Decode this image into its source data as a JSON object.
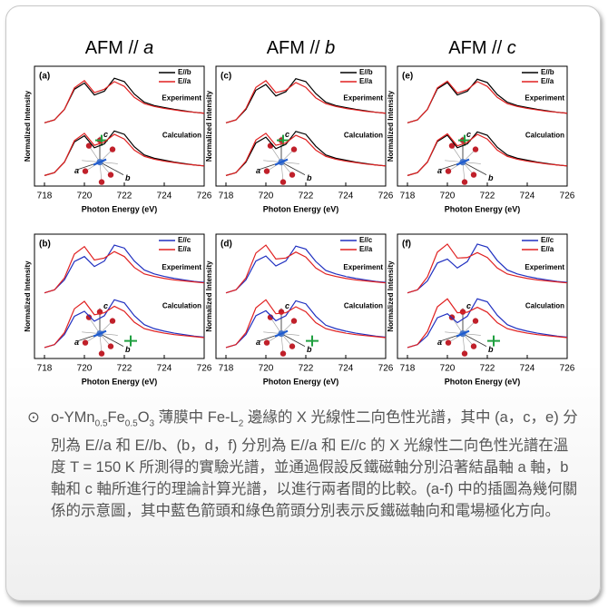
{
  "headers": [
    {
      "text": "AFM //",
      "axis": "a"
    },
    {
      "text": "AFM //",
      "axis": "b"
    },
    {
      "text": "AFM //",
      "axis": "c"
    }
  ],
  "caption": {
    "bullet": "⊙",
    "parts": [
      "o-YMn",
      "0.5",
      "Fe",
      "0.5",
      "O",
      "3",
      " 薄膜中 Fe-L",
      "2",
      " 邊緣的 X 光線性二向色性光譜，其中 (a，c，e) 分別為 E//a 和 E//b、(b，d，f) 分別為 E//a 和 E//c 的 X 光線性二向色性光譜在溫度 T = 150 K 所測得的實驗光譜，並通過假設反鐵磁軸分別沿著結晶軸 a 軸，b 軸和 c 軸所進行的理論計算光譜，以進行兩者間的比較。(a-f) 中的插圖為幾何關係的示意圖，其中藍色箭頭和綠色箭頭分別表示反鐵磁軸向和電場極化方向。"
    ]
  },
  "chart_data": [
    {
      "type": "line",
      "label": "(a)",
      "xlabel": "Photon Energy (eV)",
      "ylabel": "Normalized Intensity",
      "annotations": [
        "Experiment",
        "Calculation"
      ],
      "inset_labels": [
        "c",
        "a",
        "b"
      ],
      "x": [
        718,
        718.5,
        719,
        719.5,
        720,
        720.5,
        721,
        721.5,
        722,
        722.5,
        723,
        723.5,
        724,
        724.5,
        725,
        725.5,
        726
      ],
      "xlim": [
        717.5,
        726
      ],
      "xticks": [
        718,
        720,
        722,
        724,
        726
      ],
      "ylim": [
        0,
        2.5
      ],
      "series": [
        {
          "name": "E//b",
          "color": "#000000",
          "experiment": [
            1.32,
            1.38,
            1.6,
            2.02,
            2.15,
            1.9,
            1.98,
            2.25,
            2.18,
            1.92,
            1.75,
            1.68,
            1.64,
            1.6,
            1.57,
            1.54,
            1.52
          ],
          "calculation": [
            0.22,
            0.28,
            0.5,
            0.92,
            1.05,
            0.8,
            0.88,
            1.15,
            1.08,
            0.82,
            0.65,
            0.58,
            0.54,
            0.5,
            0.47,
            0.44,
            0.42
          ]
        },
        {
          "name": "E//a",
          "color": "#e02020",
          "experiment": [
            1.32,
            1.38,
            1.6,
            2.05,
            2.2,
            1.95,
            2.02,
            2.18,
            2.08,
            1.85,
            1.72,
            1.66,
            1.62,
            1.59,
            1.56,
            1.54,
            1.52
          ],
          "calculation": [
            0.22,
            0.28,
            0.5,
            0.95,
            1.1,
            0.85,
            0.92,
            1.08,
            0.98,
            0.75,
            0.62,
            0.56,
            0.52,
            0.49,
            0.46,
            0.44,
            0.42
          ]
        }
      ]
    },
    {
      "type": "line",
      "label": "(b)",
      "xlabel": "Photon Energy (eV)",
      "ylabel": "Normalized Intensity",
      "annotations": [
        "Experiment",
        "Calculation"
      ],
      "inset_labels": [
        "c",
        "a",
        "b"
      ],
      "x": [
        718,
        718.5,
        719,
        719.5,
        720,
        720.5,
        721,
        721.5,
        722,
        722.5,
        723,
        723.5,
        724,
        724.5,
        725,
        725.5,
        726
      ],
      "xlim": [
        717.5,
        726
      ],
      "xticks": [
        718,
        720,
        722,
        724,
        726
      ],
      "ylim": [
        0,
        2.5
      ],
      "series": [
        {
          "name": "E//c",
          "color": "#2030c0",
          "experiment": [
            1.32,
            1.38,
            1.58,
            1.95,
            2.05,
            1.85,
            1.96,
            2.28,
            2.22,
            1.96,
            1.78,
            1.7,
            1.65,
            1.61,
            1.58,
            1.55,
            1.53
          ],
          "calculation": [
            0.22,
            0.28,
            0.48,
            0.85,
            0.95,
            0.75,
            0.86,
            1.18,
            1.12,
            0.86,
            0.68,
            0.6,
            0.55,
            0.51,
            0.48,
            0.45,
            0.43
          ]
        },
        {
          "name": "E//a",
          "color": "#e02020",
          "experiment": [
            1.32,
            1.38,
            1.62,
            2.1,
            2.25,
            1.98,
            2.02,
            2.15,
            2.05,
            1.83,
            1.7,
            1.65,
            1.61,
            1.58,
            1.56,
            1.54,
            1.52
          ],
          "calculation": [
            0.22,
            0.28,
            0.52,
            1.0,
            1.15,
            0.88,
            0.92,
            1.05,
            0.95,
            0.73,
            0.6,
            0.55,
            0.51,
            0.48,
            0.46,
            0.44,
            0.42
          ]
        }
      ]
    },
    {
      "type": "line",
      "label": "(c)",
      "xlabel": "Photon Energy (eV)",
      "ylabel": "Normalized Intensity",
      "annotations": [
        "Experiment",
        "Calculation"
      ],
      "inset_labels": [
        "c",
        "a",
        "b"
      ],
      "x": [
        718,
        718.5,
        719,
        719.5,
        720,
        720.5,
        721,
        721.5,
        722,
        722.5,
        723,
        723.5,
        724,
        724.5,
        725,
        725.5,
        726
      ],
      "xlim": [
        717.5,
        726
      ],
      "xticks": [
        718,
        720,
        722,
        724,
        726
      ],
      "ylim": [
        0,
        2.5
      ],
      "series": [
        {
          "name": "E//b",
          "color": "#000000",
          "experiment": [
            1.32,
            1.38,
            1.6,
            2.0,
            2.12,
            1.88,
            1.97,
            2.24,
            2.18,
            1.93,
            1.75,
            1.68,
            1.64,
            1.6,
            1.57,
            1.54,
            1.52
          ],
          "calculation": [
            0.22,
            0.28,
            0.5,
            0.9,
            1.02,
            0.78,
            0.87,
            1.14,
            1.08,
            0.83,
            0.65,
            0.58,
            0.54,
            0.5,
            0.47,
            0.44,
            0.42
          ]
        },
        {
          "name": "E//a",
          "color": "#e02020",
          "experiment": [
            1.32,
            1.38,
            1.62,
            2.06,
            2.2,
            1.95,
            2.0,
            2.16,
            2.06,
            1.84,
            1.72,
            1.66,
            1.62,
            1.59,
            1.56,
            1.54,
            1.52
          ],
          "calculation": [
            0.22,
            0.28,
            0.52,
            0.96,
            1.1,
            0.85,
            0.9,
            1.06,
            0.97,
            0.75,
            0.62,
            0.56,
            0.52,
            0.49,
            0.46,
            0.44,
            0.42
          ]
        }
      ]
    },
    {
      "type": "line",
      "label": "(d)",
      "xlabel": "Photon Energy (eV)",
      "ylabel": "Normalized Intensity",
      "annotations": [
        "Experiment",
        "Calculation"
      ],
      "inset_labels": [
        "c",
        "a",
        "b"
      ],
      "x": [
        718,
        718.5,
        719,
        719.5,
        720,
        720.5,
        721,
        721.5,
        722,
        722.5,
        723,
        723.5,
        724,
        724.5,
        725,
        725.5,
        726
      ],
      "xlim": [
        717.5,
        726
      ],
      "xticks": [
        718,
        720,
        722,
        724,
        726
      ],
      "ylim": [
        0,
        2.5
      ],
      "series": [
        {
          "name": "E//c",
          "color": "#2030c0",
          "experiment": [
            1.32,
            1.38,
            1.58,
            1.96,
            2.06,
            1.86,
            1.96,
            2.26,
            2.2,
            1.95,
            1.77,
            1.7,
            1.65,
            1.61,
            1.58,
            1.55,
            1.53
          ],
          "calculation": [
            0.22,
            0.28,
            0.48,
            0.86,
            0.96,
            0.76,
            0.86,
            1.16,
            1.1,
            0.85,
            0.67,
            0.6,
            0.55,
            0.51,
            0.48,
            0.45,
            0.43
          ]
        },
        {
          "name": "E//a",
          "color": "#e02020",
          "experiment": [
            1.32,
            1.38,
            1.62,
            2.12,
            2.28,
            2.0,
            2.02,
            2.14,
            2.04,
            1.82,
            1.7,
            1.65,
            1.61,
            1.58,
            1.56,
            1.54,
            1.52
          ],
          "calculation": [
            0.22,
            0.28,
            0.52,
            1.02,
            1.18,
            0.9,
            0.92,
            1.04,
            0.94,
            0.72,
            0.6,
            0.55,
            0.51,
            0.48,
            0.46,
            0.44,
            0.42
          ]
        }
      ]
    },
    {
      "type": "line",
      "label": "(e)",
      "xlabel": "Photon Energy (eV)",
      "ylabel": "Normalized Intensity",
      "annotations": [
        "Experiment",
        "Calculation"
      ],
      "inset_labels": [
        "c",
        "a",
        "b"
      ],
      "x": [
        718,
        718.5,
        719,
        719.5,
        720,
        720.5,
        721,
        721.5,
        722,
        722.5,
        723,
        723.5,
        724,
        724.5,
        725,
        725.5,
        726
      ],
      "xlim": [
        717.5,
        726
      ],
      "xticks": [
        718,
        720,
        722,
        724,
        726
      ],
      "ylim": [
        0,
        2.5
      ],
      "series": [
        {
          "name": "E//b",
          "color": "#000000",
          "experiment": [
            1.32,
            1.38,
            1.6,
            2.03,
            2.16,
            1.9,
            1.98,
            2.23,
            2.16,
            1.91,
            1.75,
            1.68,
            1.64,
            1.6,
            1.57,
            1.54,
            1.52
          ],
          "calculation": [
            0.22,
            0.28,
            0.5,
            0.93,
            1.06,
            0.8,
            0.88,
            1.13,
            1.06,
            0.81,
            0.65,
            0.58,
            0.54,
            0.5,
            0.47,
            0.44,
            0.42
          ]
        },
        {
          "name": "E//a",
          "color": "#e02020",
          "experiment": [
            1.32,
            1.38,
            1.6,
            2.05,
            2.19,
            1.94,
            2.01,
            2.18,
            2.08,
            1.85,
            1.72,
            1.66,
            1.62,
            1.59,
            1.56,
            1.54,
            1.52
          ],
          "calculation": [
            0.22,
            0.28,
            0.5,
            0.95,
            1.09,
            0.84,
            0.91,
            1.08,
            0.98,
            0.75,
            0.62,
            0.56,
            0.52,
            0.49,
            0.46,
            0.44,
            0.42
          ]
        }
      ]
    },
    {
      "type": "line",
      "label": "(f)",
      "xlabel": "Photon Energy (eV)",
      "ylabel": "Normalized Intensity",
      "annotations": [
        "Experiment",
        "Calculation"
      ],
      "inset_labels": [
        "c",
        "a",
        "b"
      ],
      "x": [
        718,
        718.5,
        719,
        719.5,
        720,
        720.5,
        721,
        721.5,
        722,
        722.5,
        723,
        723.5,
        724,
        724.5,
        725,
        725.5,
        726
      ],
      "xlim": [
        717.5,
        726
      ],
      "xticks": [
        718,
        720,
        722,
        724,
        726
      ],
      "ylim": [
        0,
        2.5
      ],
      "series": [
        {
          "name": "E//c",
          "color": "#2030c0",
          "experiment": [
            1.32,
            1.38,
            1.56,
            1.92,
            2.0,
            1.82,
            1.95,
            2.3,
            2.24,
            1.97,
            1.78,
            1.7,
            1.65,
            1.61,
            1.58,
            1.55,
            1.53
          ],
          "calculation": [
            0.22,
            0.28,
            0.46,
            0.82,
            0.9,
            0.72,
            0.85,
            1.2,
            1.14,
            0.87,
            0.68,
            0.6,
            0.55,
            0.51,
            0.48,
            0.45,
            0.43
          ]
        },
        {
          "name": "E//a",
          "color": "#e02020",
          "experiment": [
            1.32,
            1.38,
            1.64,
            2.14,
            2.3,
            2.02,
            2.03,
            2.13,
            2.03,
            1.82,
            1.7,
            1.65,
            1.61,
            1.58,
            1.56,
            1.54,
            1.52
          ],
          "calculation": [
            0.22,
            0.28,
            0.54,
            1.04,
            1.2,
            0.92,
            0.93,
            1.03,
            0.93,
            0.72,
            0.6,
            0.55,
            0.51,
            0.48,
            0.46,
            0.44,
            0.42
          ]
        }
      ]
    }
  ]
}
